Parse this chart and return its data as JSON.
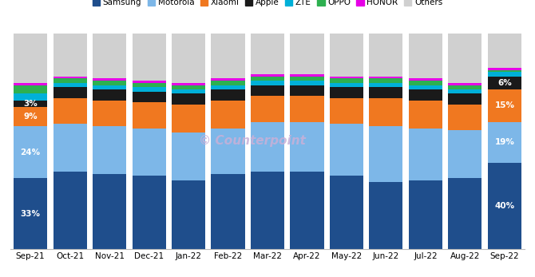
{
  "categories": [
    "Sep-21",
    "Oct-21",
    "Nov-21",
    "Dec-21",
    "Jan-22",
    "Feb-22",
    "Mar-22",
    "Apr-22",
    "May-22",
    "Jun-22",
    "Jul-22",
    "Aug-22",
    "Sep-22"
  ],
  "series": {
    "Samsung": [
      33,
      36,
      35,
      34,
      32,
      35,
      36,
      36,
      34,
      31,
      32,
      33,
      40
    ],
    "Motorola": [
      24,
      22,
      22,
      22,
      22,
      21,
      23,
      23,
      24,
      26,
      24,
      22,
      19
    ],
    "Xiaomi": [
      9,
      12,
      12,
      12,
      13,
      13,
      12,
      12,
      12,
      13,
      13,
      12,
      15
    ],
    "Apple": [
      3,
      5,
      5,
      5,
      5,
      5,
      5,
      5,
      5,
      5,
      5,
      5,
      6
    ],
    "ZTE": [
      3,
      2,
      2,
      2,
      2,
      2,
      2,
      2,
      2,
      2,
      2,
      2,
      2
    ],
    "OPPO": [
      4,
      2,
      2,
      2,
      2,
      2,
      2,
      2,
      2,
      2,
      2,
      2,
      1
    ],
    "HONOR": [
      1,
      1,
      1,
      1,
      1,
      1,
      1,
      1,
      1,
      1,
      1,
      1,
      1
    ],
    "Others": [
      23,
      20,
      21,
      22,
      23,
      21,
      19,
      19,
      20,
      20,
      21,
      23,
      16
    ]
  },
  "colors": {
    "Samsung": "#1f4e8c",
    "Motorola": "#7db7e8",
    "Xiaomi": "#f07820",
    "Apple": "#1a1a1a",
    "ZTE": "#00b0d8",
    "OPPO": "#2db050",
    "HONOR": "#e600e6",
    "Others": "#d0d0d0"
  },
  "watermark": "Counterpoint",
  "legend_order": [
    "Samsung",
    "Motorola",
    "Xiaomi",
    "Apple",
    "ZTE",
    "OPPO",
    "HONOR",
    "Others"
  ],
  "figsize": [
    6.7,
    3.47
  ],
  "dpi": 100
}
